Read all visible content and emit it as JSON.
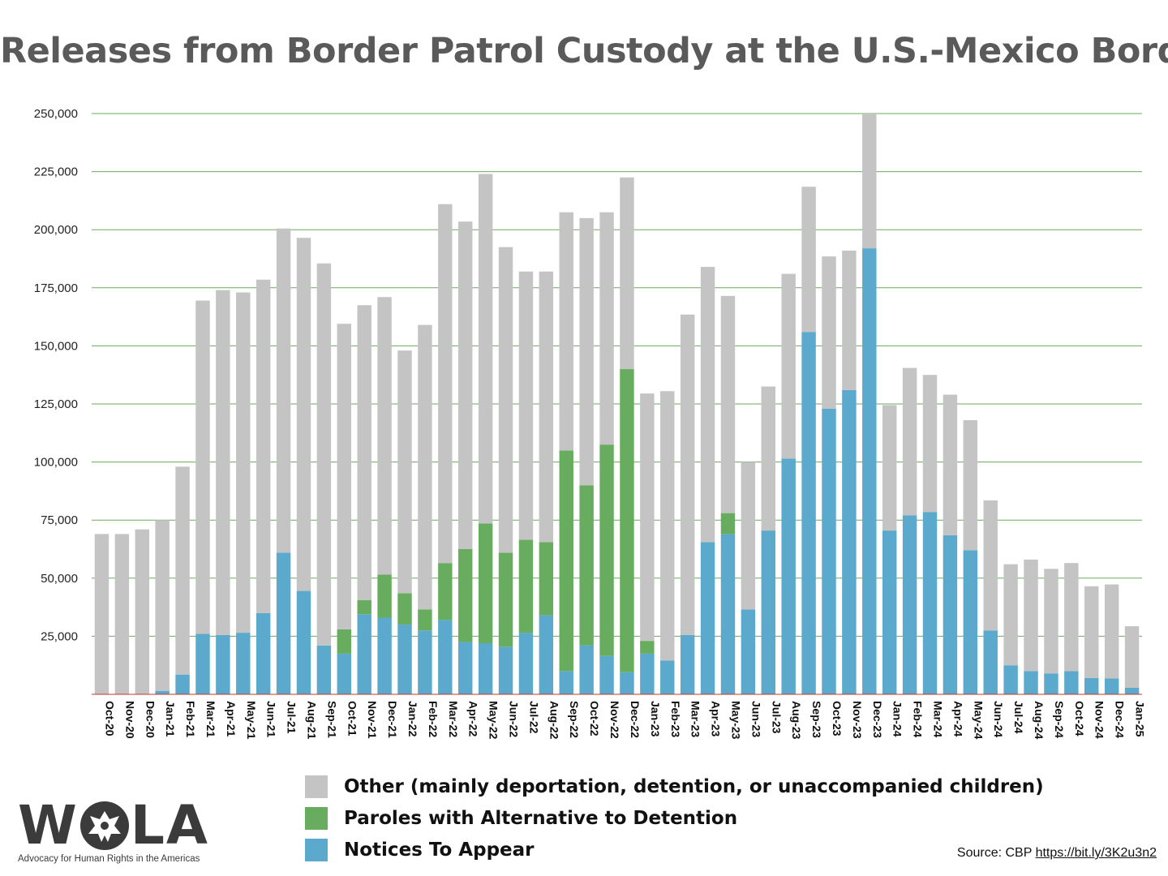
{
  "title": "Releases from Border Patrol Custody at the U.S.-Mexico Border",
  "colors": {
    "other": "#c4c4c4",
    "paroles": "#68ad5f",
    "nta": "#5ba9cc",
    "grid": "#6aaa5e",
    "axis": "#c0392b"
  },
  "legend": [
    {
      "label": "Other (mainly deportation, detention, or unaccompanied children)",
      "color": "#c4c4c4"
    },
    {
      "label": "Paroles with Alternative to Detention",
      "color": "#68ad5f"
    },
    {
      "label": "Notices To Appear",
      "color": "#5ba9cc"
    }
  ],
  "logo": {
    "text": "WOLA",
    "tagline": "Advocacy for Human Rights in the Americas"
  },
  "source": {
    "prefix": "Source: CBP",
    "link": "https://bit.ly/3K2u3n2"
  },
  "chart_data": {
    "type": "bar",
    "stacked": true,
    "title": "Releases from Border Patrol Custody at the U.S.-Mexico Border",
    "ylim": [
      0,
      250000
    ],
    "yticks": [
      "25,000",
      "50,000",
      "75,000",
      "100,000",
      "125,000",
      "150,000",
      "175,000",
      "200,000",
      "225,000",
      "250,000"
    ],
    "ytick_values": [
      25000,
      50000,
      75000,
      100000,
      125000,
      150000,
      175000,
      200000,
      225000,
      250000
    ],
    "grid": true,
    "legend_position": "bottom",
    "categories": [
      "Oct-20",
      "Nov-20",
      "Dec-20",
      "Jan-21",
      "Feb-21",
      "Mar-21",
      "Apr-21",
      "May-21",
      "Jun-21",
      "Jul-21",
      "Aug-21",
      "Sep-21",
      "Oct-21",
      "Nov-21",
      "Dec-21",
      "Jan-22",
      "Feb-22",
      "Mar-22",
      "Apr-22",
      "May-22",
      "Jun-22",
      "Jul-22",
      "Aug-22",
      "Sep-22",
      "Oct-22",
      "Nov-22",
      "Dec-22",
      "Jan-23",
      "Feb-23",
      "Mar-23",
      "Apr-23",
      "May-23",
      "Jun-23",
      "Jul-23",
      "Aug-23",
      "Sep-23",
      "Oct-23",
      "Nov-23",
      "Dec-23",
      "Jan-24",
      "Feb-24",
      "Mar-24",
      "Apr-24",
      "May-24",
      "Jun-24",
      "Jul-24",
      "Aug-24",
      "Sep-24",
      "Oct-24",
      "Nov-24",
      "Dec-24",
      "Jan-25"
    ],
    "series": [
      {
        "name": "Notices To Appear",
        "values": [
          0,
          0,
          0,
          1500,
          8500,
          26000,
          25500,
          26500,
          35000,
          61000,
          44500,
          21000,
          17500,
          34500,
          33000,
          30000,
          27500,
          32000,
          22500,
          22000,
          20500,
          26500,
          34000,
          10000,
          21000,
          16500,
          9500,
          17500,
          14500,
          25500,
          65500,
          69000,
          36500,
          70500,
          101500,
          156000,
          123000,
          131000,
          192000,
          70500,
          77000,
          78500,
          68500,
          62000,
          27500,
          12500,
          10000,
          9000,
          10000,
          7000,
          6800,
          2800
        ]
      },
      {
        "name": "Paroles with Alternative to Detention",
        "values": [
          0,
          0,
          0,
          0,
          0,
          0,
          0,
          0,
          0,
          0,
          0,
          0,
          10500,
          6000,
          18500,
          13500,
          9000,
          24500,
          40000,
          51500,
          40500,
          40000,
          31500,
          95000,
          69000,
          91000,
          130500,
          5500,
          0,
          0,
          0,
          9000,
          0,
          0,
          0,
          0,
          0,
          0,
          0,
          0,
          0,
          0,
          0,
          0,
          0,
          0,
          0,
          0,
          0,
          0,
          0,
          0
        ]
      },
      {
        "name": "Other (mainly deportation, detention, or unaccompanied children)",
        "values": [
          69000,
          69000,
          71000,
          73500,
          89500,
          143500,
          148500,
          146500,
          143500,
          139500,
          152000,
          164500,
          131500,
          127000,
          119500,
          104500,
          122500,
          154500,
          141000,
          150500,
          131500,
          115500,
          116500,
          102500,
          115000,
          100000,
          82500,
          106500,
          116000,
          138000,
          118500,
          93500,
          63500,
          62000,
          79500,
          62500,
          65500,
          60000,
          58000,
          54000,
          63500,
          59000,
          60500,
          56000,
          56000,
          43500,
          48000,
          45000,
          46500,
          39500,
          40500,
          26500
        ]
      }
    ]
  }
}
